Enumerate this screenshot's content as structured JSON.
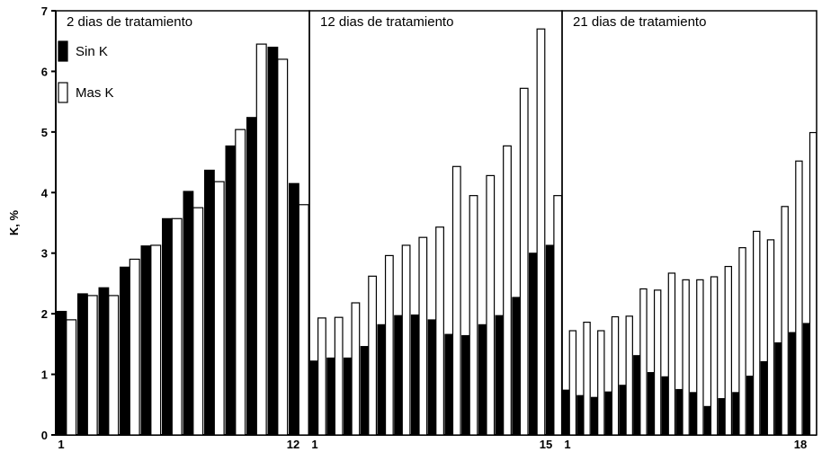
{
  "chart_data": {
    "type": "bar",
    "ylabel": "K, %",
    "ylim": [
      0,
      7
    ],
    "yticks": [
      "0",
      "1",
      "2",
      "3",
      "4",
      "5",
      "6",
      "7"
    ],
    "legend": {
      "placement": "top-left",
      "entries": [
        {
          "name": "Sin K",
          "color": "#000000"
        },
        {
          "name": "Mas K",
          "color": "#ffffff"
        }
      ]
    },
    "panels": [
      {
        "title": "2 dias de tratamiento",
        "x_first": "1",
        "x_last": "12",
        "sin_k": [
          2.04,
          2.33,
          2.43,
          2.77,
          3.12,
          3.57,
          4.02,
          4.37,
          4.77,
          5.24,
          6.4,
          4.15
        ],
        "mas_k": [
          1.9,
          2.3,
          2.3,
          2.9,
          3.13,
          3.57,
          3.75,
          4.18,
          5.04,
          6.45,
          6.2,
          3.8
        ]
      },
      {
        "title": "12 dias de tratamiento",
        "x_first": "1",
        "x_last": "15",
        "sin_k": [
          1.22,
          1.27,
          1.27,
          1.46,
          1.82,
          1.97,
          1.98,
          1.9,
          1.66,
          1.64,
          1.82,
          1.97,
          2.27,
          3.0,
          3.13
        ],
        "mas_k": [
          1.93,
          1.94,
          2.18,
          2.62,
          2.96,
          3.13,
          3.26,
          3.43,
          4.43,
          3.95,
          4.28,
          4.77,
          5.72,
          6.7,
          3.95
        ]
      },
      {
        "title": "21 dias de tratamiento",
        "x_first": "1",
        "x_last": "18",
        "sin_k": [
          0.74,
          0.65,
          0.62,
          0.71,
          0.82,
          1.31,
          1.03,
          0.96,
          0.75,
          0.7,
          0.47,
          0.6,
          0.7,
          0.97,
          1.21,
          1.52,
          1.69,
          1.84
        ],
        "mas_k": [
          1.72,
          1.86,
          1.72,
          1.95,
          1.96,
          2.41,
          2.39,
          2.67,
          2.56,
          2.56,
          2.61,
          2.78,
          3.09,
          3.36,
          3.22,
          3.77,
          4.52,
          4.99
        ]
      }
    ]
  }
}
